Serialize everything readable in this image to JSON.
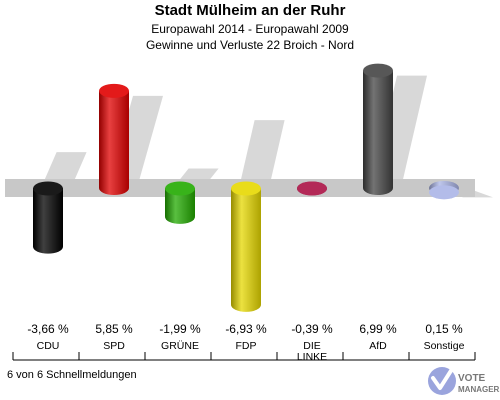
{
  "header": {
    "title": "Stadt Mülheim an der Ruhr",
    "subtitle1": "Europawahl 2014 - Europawahl 2009",
    "subtitle2": "Gewinne und Verluste 22 Broich - Nord"
  },
  "footer": {
    "status": "6 von 6 Schnellmeldungen"
  },
  "logo": {
    "text": "VOTEMANAGER.DE"
  },
  "chart_data": {
    "type": "bar",
    "categories": [
      "CDU",
      "SPD",
      "GRÜNE",
      "FDP",
      "DIE LINKE",
      "AfD",
      "Sonstige"
    ],
    "category_lines": [
      [
        "CDU"
      ],
      [
        "SPD"
      ],
      [
        "GRÜNE"
      ],
      [
        "FDP"
      ],
      [
        "DIE",
        "LINKE"
      ],
      [
        "AfD"
      ],
      [
        "Sonstige"
      ]
    ],
    "values": [
      -3.66,
      5.85,
      -1.99,
      -6.93,
      -0.39,
      6.99,
      0.15
    ],
    "value_labels": [
      "-3,66 %",
      "5,85 %",
      "-1,99 %",
      "-6,93 %",
      "-0,39 %",
      "6,99 %",
      "0,15 %"
    ],
    "colors": [
      "#000000",
      "#e00000",
      "#22aa00",
      "#e6d800",
      "#aa1144",
      "#444444",
      "#aab4e6"
    ],
    "ylim": [
      -7.5,
      7.5
    ],
    "grid": false
  }
}
